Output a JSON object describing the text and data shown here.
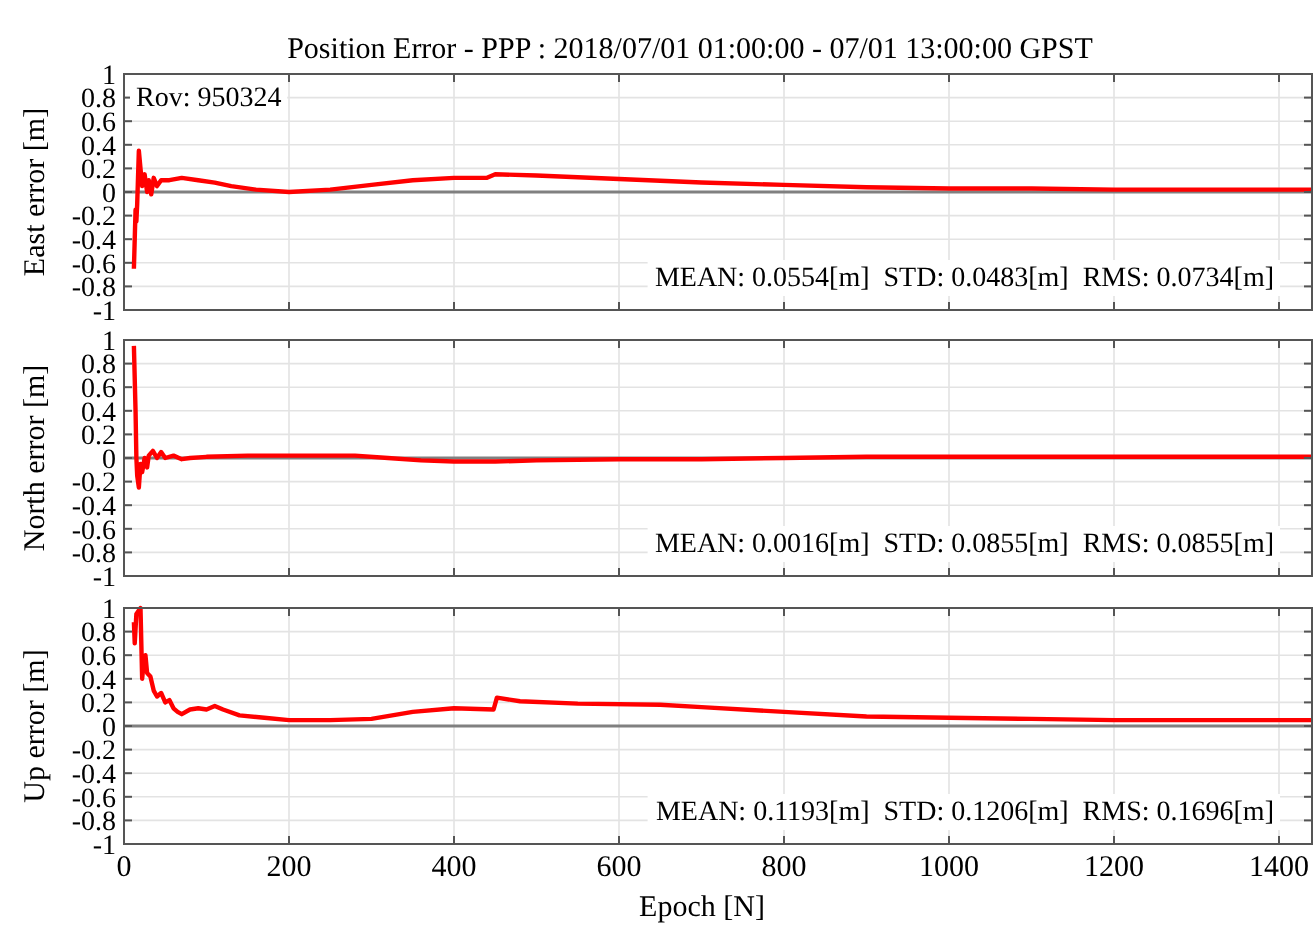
{
  "chart_data": [
    {
      "type": "line",
      "title": "Position Error - PPP : 2018/07/01 01:00:00 - 07/01 13:00:00 GPST",
      "ylabel": "East error [m]",
      "annotations": [
        "Rov: 950324",
        "MEAN: 0.0554[m]  STD: 0.0483[m]  RMS: 0.0734[m]"
      ],
      "xlim": [
        0,
        1440
      ],
      "xticks": [
        0,
        200,
        400,
        600,
        800,
        1000,
        1200,
        1400
      ],
      "ylim": [
        -1,
        1
      ],
      "yticks": [
        -1,
        -0.8,
        -0.6,
        -0.4,
        -0.2,
        0,
        0.2,
        0.4,
        0.6,
        0.8,
        1
      ],
      "grid": true,
      "tick_labels": "y",
      "ref_lines": [
        {
          "axis": "y",
          "value": 0,
          "color": "#808080"
        }
      ],
      "series": [
        {
          "color": "#ff0000",
          "x": [
            12,
            13,
            14,
            15,
            16,
            18,
            20,
            22,
            25,
            28,
            30,
            33,
            36,
            40,
            45,
            55,
            70,
            90,
            110,
            130,
            160,
            200,
            250,
            300,
            350,
            400,
            440,
            450,
            500,
            600,
            700,
            800,
            900,
            1000,
            1100,
            1200,
            1300,
            1440
          ],
          "values": [
            -0.65,
            -0.4,
            -0.15,
            -0.25,
            -0.1,
            0.35,
            0.2,
            0.05,
            0.15,
            0.0,
            0.1,
            -0.02,
            0.12,
            0.05,
            0.1,
            0.1,
            0.12,
            0.1,
            0.08,
            0.05,
            0.02,
            0.0,
            0.02,
            0.06,
            0.1,
            0.12,
            0.12,
            0.15,
            0.14,
            0.11,
            0.08,
            0.06,
            0.04,
            0.03,
            0.03,
            0.02,
            0.02,
            0.02
          ]
        }
      ]
    },
    {
      "type": "line",
      "ylabel": "North error [m]",
      "annotations": [
        "MEAN: 0.0016[m]  STD: 0.0855[m]  RMS: 0.0855[m]"
      ],
      "xlim": [
        0,
        1440
      ],
      "xticks": [
        0,
        200,
        400,
        600,
        800,
        1000,
        1200,
        1400
      ],
      "ylim": [
        -1,
        1
      ],
      "yticks": [
        -1,
        -0.8,
        -0.6,
        -0.4,
        -0.2,
        0,
        0.2,
        0.4,
        0.6,
        0.8,
        1
      ],
      "grid": true,
      "tick_labels": "y",
      "ref_lines": [
        {
          "axis": "y",
          "value": 0,
          "color": "#808080"
        }
      ],
      "series": [
        {
          "color": "#ff0000",
          "x": [
            12,
            14,
            15,
            16,
            18,
            20,
            22,
            25,
            28,
            30,
            35,
            40,
            45,
            50,
            60,
            70,
            80,
            100,
            150,
            200,
            280,
            320,
            360,
            400,
            450,
            500,
            600,
            700,
            800,
            900,
            1000,
            1200,
            1440
          ],
          "values": [
            0.95,
            0.4,
            0.0,
            -0.15,
            -0.25,
            -0.05,
            -0.12,
            0.0,
            -0.08,
            0.02,
            0.06,
            0.0,
            0.05,
            0.0,
            0.02,
            -0.01,
            0.0,
            0.01,
            0.02,
            0.02,
            0.02,
            0.0,
            -0.02,
            -0.03,
            -0.03,
            -0.02,
            -0.01,
            -0.01,
            0.0,
            0.01,
            0.01,
            0.01,
            0.01
          ]
        }
      ]
    },
    {
      "type": "line",
      "ylabel": "Up error [m]",
      "xlabel": "Epoch [N]",
      "annotations": [
        "MEAN: 0.1193[m]  STD: 0.1206[m]  RMS: 0.1696[m]"
      ],
      "xlim": [
        0,
        1440
      ],
      "xticks": [
        0,
        200,
        400,
        600,
        800,
        1000,
        1200,
        1400
      ],
      "ylim": [
        -1,
        1
      ],
      "yticks": [
        -1,
        -0.8,
        -0.6,
        -0.4,
        -0.2,
        0,
        0.2,
        0.4,
        0.6,
        0.8,
        1
      ],
      "grid": true,
      "ref_lines": [
        {
          "axis": "y",
          "value": 0,
          "color": "#808080"
        }
      ],
      "series": [
        {
          "color": "#ff0000",
          "x": [
            12,
            13,
            15,
            20,
            22,
            24,
            26,
            28,
            32,
            36,
            40,
            45,
            50,
            55,
            60,
            65,
            70,
            80,
            90,
            100,
            110,
            120,
            140,
            170,
            200,
            250,
            300,
            350,
            400,
            448,
            452,
            480,
            550,
            650,
            700,
            800,
            900,
            1000,
            1100,
            1200,
            1300,
            1440
          ],
          "values": [
            0.88,
            0.7,
            0.95,
            1.0,
            0.4,
            0.55,
            0.6,
            0.45,
            0.42,
            0.3,
            0.25,
            0.28,
            0.2,
            0.22,
            0.15,
            0.12,
            0.1,
            0.14,
            0.15,
            0.14,
            0.17,
            0.14,
            0.09,
            0.07,
            0.05,
            0.05,
            0.06,
            0.12,
            0.15,
            0.14,
            0.24,
            0.21,
            0.19,
            0.18,
            0.16,
            0.12,
            0.08,
            0.07,
            0.06,
            0.05,
            0.05,
            0.05
          ]
        }
      ]
    }
  ]
}
